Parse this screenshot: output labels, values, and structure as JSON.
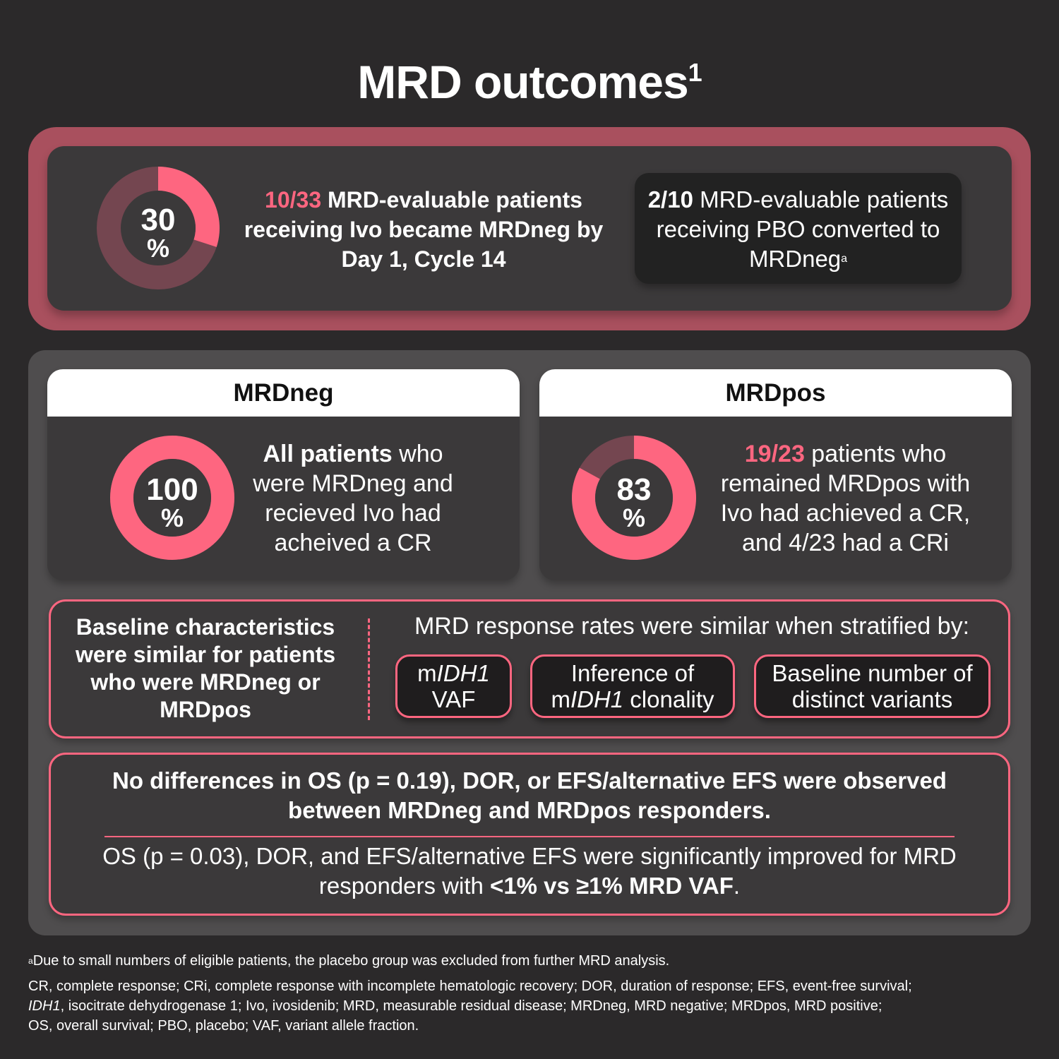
{
  "title": {
    "text": "MRD outcomes",
    "superscript": "1"
  },
  "colors": {
    "accent": "#fe6680",
    "frame": "#a9505e",
    "track": "#744650",
    "background": "#2b292a",
    "card": "#3b393a",
    "panel": "#4f4d4e"
  },
  "top": {
    "donut": {
      "value": 30,
      "unit": "%"
    },
    "ivo_highlight": "10/33",
    "ivo_text": " MRD-evaluable patients receiving Ivo became MRDneg by Day 1, Cycle 14",
    "pbo_highlight": "2/10",
    "pbo_text": " MRD-evaluable patients receiving PBO converted to MRDneg",
    "pbo_footnote_marker": "a"
  },
  "mrdneg": {
    "header": "MRDneg",
    "donut": {
      "value": 100,
      "unit": "%"
    },
    "bold": "All patients",
    "text": " who were MRDneg and recieved Ivo had acheived a CR"
  },
  "mrdpos": {
    "header": "MRDpos",
    "donut": {
      "value": 83,
      "unit": "%"
    },
    "highlight": "19/23",
    "text": " patients who remained MRDpos with Ivo had achieved a CR, and 4/23 had a CRi"
  },
  "baseline": {
    "left_text": "Baseline characteristics were similar for patients who were MRDneg or MRDpos",
    "strat_label": "MRD response rates were similar when stratified by:",
    "pills": [
      {
        "pre": "m",
        "italic": "IDH1",
        "post": " VAF"
      },
      {
        "pre": "Inference of m",
        "italic": "IDH1",
        "post": " clonality"
      },
      {
        "pre": "Baseline number of distinct variants",
        "italic": "",
        "post": ""
      }
    ]
  },
  "outcomes": {
    "no_diff": "No differences in OS (p = 0.19), DOR, or EFS/alternative EFS were observed between MRDneg and MRDpos responders.",
    "sig_text": "OS (p = 0.03), DOR, and EFS/alternative EFS were significantly improved for MRD responders with ",
    "sig_bold": "<1% vs ≥1% MRD VAF",
    "sig_end": "."
  },
  "footnotes": {
    "a_marker": "a",
    "a_text": "Due to small numbers of eligible patients, the placebo group was excluded from further MRD analysis.",
    "abbrev_1": "CR, complete response; CRi, complete response with incomplete hematologic recovery; DOR, duration of response; EFS, event-free survival;",
    "abbrev_2_italic": "IDH1",
    "abbrev_2": ", isocitrate dehydrogenase 1; Ivo, ivosidenib; MRD, measurable residual disease; MRDneg, MRD negative; MRDpos, MRD positive;",
    "abbrev_3": "OS, overall survival; PBO, placebo; VAF, variant allele fraction."
  }
}
